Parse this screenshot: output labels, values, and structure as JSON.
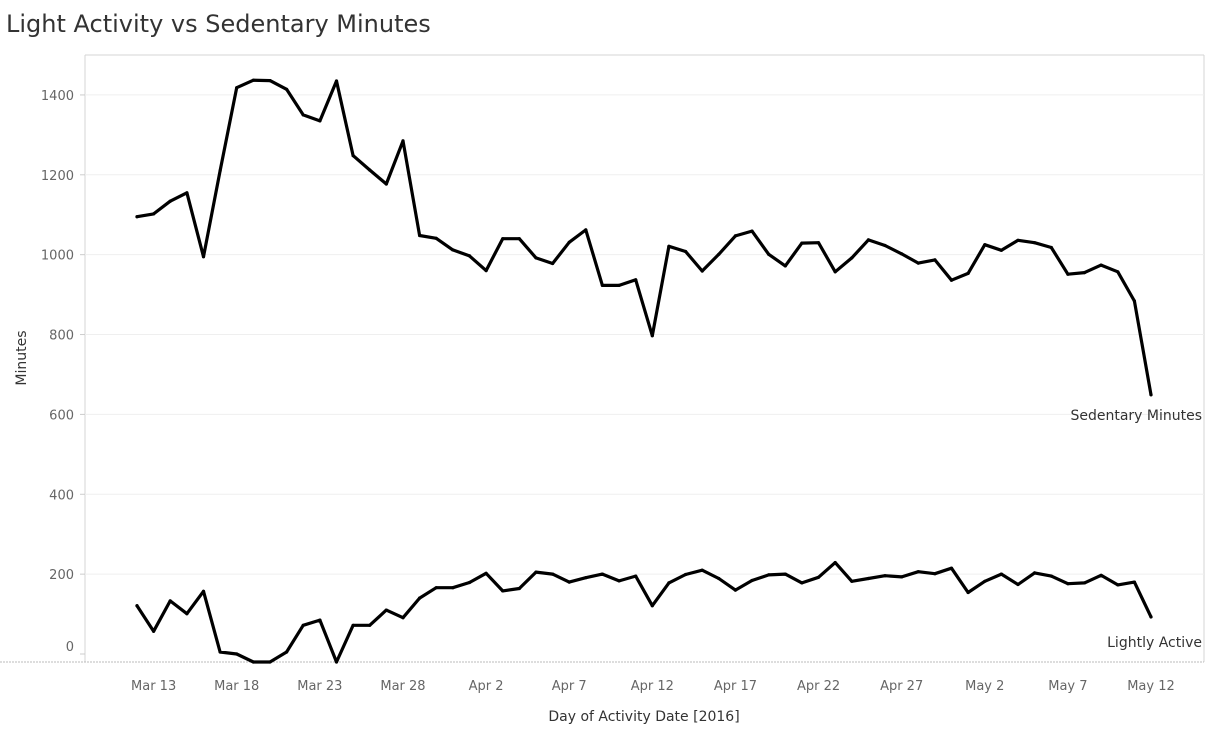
{
  "chart_data": {
    "type": "line",
    "title": "Light Activity vs Sedentary Minutes",
    "xlabel": "Day of Activity Date [2016]",
    "ylabel": "Minutes",
    "ylim": [
      -20,
      1500
    ],
    "yticks": [
      0,
      200,
      400,
      600,
      800,
      1000,
      1200,
      1400
    ],
    "x_tick_labels": [
      "Mar 13",
      "Mar 18",
      "Mar 23",
      "Mar 28",
      "Apr 2",
      "Apr 7",
      "Apr 12",
      "Apr 17",
      "Apr 22",
      "Apr 27",
      "May 2",
      "May 7",
      "May 12"
    ],
    "grid": true,
    "legend": "none",
    "line_color": "#000000",
    "x": [
      "2016-03-12",
      "2016-03-13",
      "2016-03-14",
      "2016-03-15",
      "2016-03-16",
      "2016-03-17",
      "2016-03-18",
      "2016-03-19",
      "2016-03-20",
      "2016-03-21",
      "2016-03-22",
      "2016-03-23",
      "2016-03-24",
      "2016-03-25",
      "2016-03-26",
      "2016-03-27",
      "2016-03-28",
      "2016-03-29",
      "2016-03-30",
      "2016-03-31",
      "2016-04-01",
      "2016-04-02",
      "2016-04-03",
      "2016-04-04",
      "2016-04-05",
      "2016-04-06",
      "2016-04-07",
      "2016-04-08",
      "2016-04-09",
      "2016-04-10",
      "2016-04-11",
      "2016-04-12",
      "2016-04-13",
      "2016-04-14",
      "2016-04-15",
      "2016-04-16",
      "2016-04-17",
      "2016-04-18",
      "2016-04-19",
      "2016-04-20",
      "2016-04-21",
      "2016-04-22",
      "2016-04-23",
      "2016-04-24",
      "2016-04-25",
      "2016-04-26",
      "2016-04-27",
      "2016-04-28",
      "2016-04-29",
      "2016-04-30",
      "2016-05-01",
      "2016-05-02",
      "2016-05-03",
      "2016-05-04",
      "2016-05-05",
      "2016-05-06",
      "2016-05-07",
      "2016-05-08",
      "2016-05-09",
      "2016-05-10",
      "2016-05-11",
      "2016-05-12"
    ],
    "series": [
      {
        "name": "Sedentary Minutes",
        "values": [
          1095,
          1102,
          1134,
          1155,
          995,
          1210,
          1418,
          1437,
          1436,
          1414,
          1350,
          1335,
          1435,
          1248,
          1212,
          1177,
          1285,
          1048,
          1041,
          1012,
          997,
          960,
          1040,
          1040,
          992,
          978,
          1031,
          1062,
          923,
          923,
          937,
          797,
          1021,
          1008,
          959,
          1001,
          1047,
          1059,
          1001,
          972,
          1029,
          1030,
          957,
          992,
          1037,
          1023,
          1002,
          979,
          987,
          936,
          953,
          1025,
          1011,
          1036,
          1030,
          1018,
          951,
          955,
          974,
          957,
          884,
          649
        ]
      },
      {
        "name": "Lightly Active",
        "values": [
          121,
          57,
          133,
          101,
          157,
          5,
          0,
          -20,
          -20,
          5,
          72,
          85,
          -20,
          72,
          72,
          110,
          91,
          140,
          166,
          166,
          179,
          202,
          158,
          164,
          205,
          200,
          180,
          191,
          200,
          183,
          195,
          121,
          178,
          199,
          210,
          189,
          160,
          184,
          198,
          200,
          178,
          192,
          229,
          182,
          189,
          196,
          193,
          206,
          201,
          215,
          154,
          182,
          200,
          174,
          203,
          195,
          176,
          178,
          197,
          173,
          180,
          93
        ]
      }
    ]
  }
}
